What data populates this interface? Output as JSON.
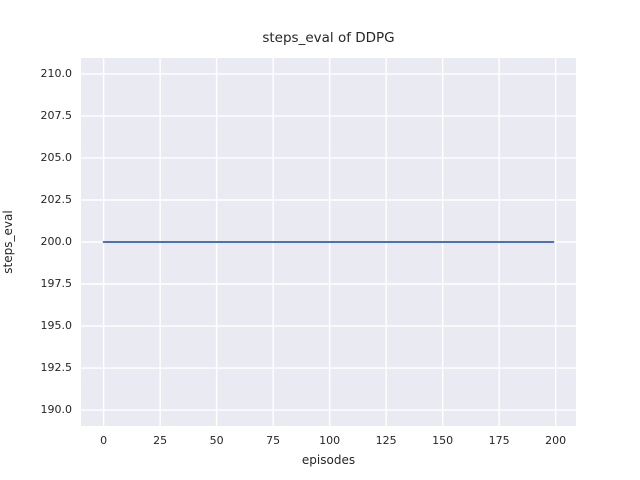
{
  "title": "steps_eval of DDPG",
  "chart_data": {
    "type": "line",
    "title": "steps_eval of DDPG",
    "xlabel": "episodes",
    "ylabel": "steps_eval",
    "x_ticks": [
      0,
      25,
      50,
      75,
      100,
      125,
      150,
      175,
      200
    ],
    "x_tick_labels": [
      "0",
      "25",
      "50",
      "75",
      "100",
      "125",
      "150",
      "175",
      "200"
    ],
    "y_ticks": [
      190.0,
      192.5,
      195.0,
      197.5,
      200.0,
      202.5,
      205.0,
      207.5,
      210.0
    ],
    "y_tick_labels": [
      "190.0",
      "192.5",
      "195.0",
      "197.5",
      "200.0",
      "202.5",
      "205.0",
      "207.5",
      "210.0"
    ],
    "xlim": [
      -10,
      209
    ],
    "ylim": [
      189.05,
      210.95
    ],
    "grid": true,
    "legend_position": "none",
    "series": [
      {
        "name": "steps_eval of DDPG",
        "constant_value": 200,
        "points": [
          [
            0,
            200
          ],
          [
            199,
            200
          ]
        ],
        "color": "#4C72B0",
        "line_width": 2
      }
    ],
    "colors": {
      "figure_background": "#FFFFFF",
      "plot_background": "#EAEAF2",
      "grid_line": "#FFFFFF",
      "text": "#262626"
    }
  }
}
